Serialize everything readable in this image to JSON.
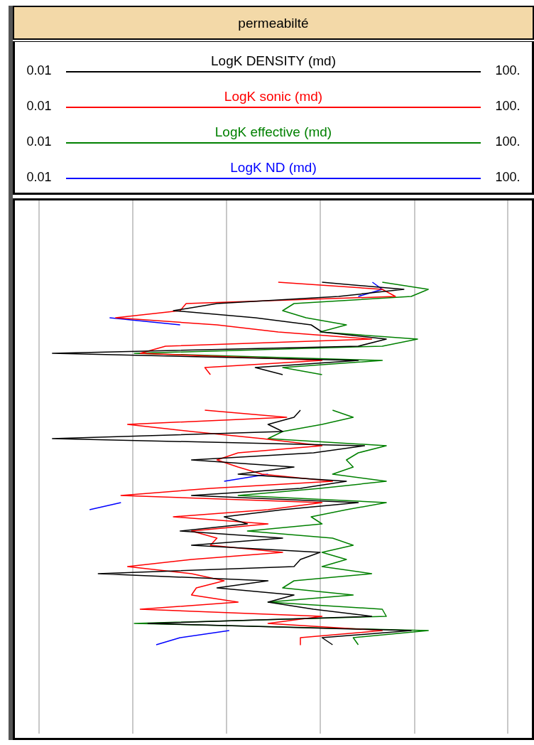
{
  "chart_data": {
    "type": "line",
    "title": "permeabilté",
    "orientation": "horizontal",
    "log": "x",
    "grid": "x",
    "legend": "top",
    "marker": "none",
    "line_style": "solid",
    "xlim": [
      0.01,
      100
    ],
    "xticks": [
      {
        "value": 0.01,
        "label": "0.01"
      },
      {
        "value": 0.063,
        "label": null
      },
      {
        "value": 0.4,
        "label": null
      },
      {
        "value": 2.5,
        "label": null
      },
      {
        "value": 16,
        "label": null
      },
      {
        "value": 100,
        "label": "100."
      }
    ],
    "categories": [
      null,
      null,
      null,
      null,
      null,
      null,
      null,
      null,
      null,
      null,
      null,
      null,
      null,
      null,
      null,
      null,
      null,
      null,
      null,
      null,
      null,
      null,
      null,
      null,
      null,
      null,
      null,
      null,
      null,
      null,
      null,
      null,
      null,
      null,
      null,
      null,
      null,
      null,
      null,
      null,
      null,
      null,
      null,
      null,
      null,
      null,
      null,
      null,
      null,
      null,
      null,
      null,
      null,
      null,
      null,
      null,
      null,
      null,
      null,
      null,
      null,
      null,
      null,
      null,
      null,
      null,
      null,
      null,
      null,
      null,
      null,
      null,
      null,
      null,
      null
    ],
    "series": [
      {
        "name": "LogK DENSITY (md)",
        "color": "#000000",
        "values": [
          null,
          null,
          null,
          null,
          null,
          null,
          null,
          null,
          null,
          null,
          null,
          2.6,
          13,
          3.6,
          0.33,
          0.14,
          0.7,
          2.1,
          2.6,
          9.2,
          5.3,
          0.013,
          5.3,
          0.7,
          1.2,
          null,
          null,
          null,
          null,
          1.7,
          1.5,
          0.9,
          1.2,
          0.013,
          6,
          2.2,
          0.2,
          1.5,
          0.5,
          4.2,
          1.7,
          0.2,
          5.3,
          1.2,
          0.38,
          0.6,
          0.16,
          1.2,
          0.2,
          2.5,
          1.7,
          1.5,
          0.032,
          0.9,
          0.33,
          1.5,
          0.9,
          2.2,
          6.9,
          0.085,
          15,
          2.6,
          3.2,
          null,
          null,
          null,
          null,
          null,
          null,
          null,
          null,
          null,
          null,
          null,
          null
        ]
      },
      {
        "name": "LogK sonic (md)",
        "color": "#ff0000",
        "values": [
          null,
          null,
          null,
          null,
          null,
          null,
          null,
          null,
          null,
          null,
          null,
          1.1,
          8.5,
          11,
          0.18,
          0.16,
          0.045,
          0.33,
          1.1,
          6.9,
          0.12,
          0.073,
          2.6,
          0.26,
          0.29,
          null,
          null,
          null,
          null,
          0.26,
          1.3,
          0.057,
          0.2,
          0.8,
          2.6,
          0.5,
          0.33,
          0.5,
          0.8,
          3.2,
          0.29,
          0.05,
          2.6,
          0.9,
          0.14,
          0.9,
          0.2,
          0.33,
          0.29,
          1.2,
          0.2,
          0.057,
          0.2,
          0.38,
          0.22,
          0.2,
          0.5,
          0.073,
          2.6,
          0.9,
          8.5,
          1.7,
          1.7,
          null,
          null,
          null,
          null,
          null,
          null,
          null,
          null,
          null,
          null,
          null,
          null
        ]
      },
      {
        "name": "LogK effective (md)",
        "color": "#008000",
        "values": [
          null,
          null,
          null,
          null,
          null,
          null,
          null,
          null,
          null,
          null,
          null,
          8.5,
          21,
          15,
          1.5,
          1.2,
          1.9,
          4.2,
          2.5,
          17,
          8.5,
          0.065,
          8.5,
          1.2,
          2.6,
          null,
          null,
          null,
          null,
          3.2,
          4.8,
          2.6,
          1.2,
          0.9,
          9.2,
          5.3,
          4.2,
          4.8,
          3.2,
          9.2,
          2.5,
          0.5,
          9.2,
          4.2,
          2.1,
          2.6,
          0.6,
          3.2,
          4.8,
          2.6,
          4.2,
          2.6,
          6.9,
          1.5,
          1.2,
          4.8,
          0.9,
          8.5,
          9.2,
          0.065,
          21,
          4.8,
          5.3,
          null,
          null,
          null,
          null,
          null,
          null,
          null,
          null,
          null,
          null,
          null,
          null
        ]
      },
      {
        "name": "LogK ND (md)",
        "color": "#0000ff",
        "values": [
          null,
          null,
          null,
          null,
          null,
          null,
          null,
          null,
          null,
          null,
          null,
          7,
          8.5,
          5.3,
          null,
          null,
          0.04,
          0.16,
          null,
          null,
          null,
          null,
          null,
          null,
          null,
          null,
          null,
          null,
          null,
          null,
          null,
          null,
          null,
          null,
          null,
          null,
          null,
          null,
          0.9,
          0.38,
          null,
          null,
          0.05,
          0.027,
          null,
          null,
          null,
          null,
          null,
          null,
          null,
          null,
          null,
          null,
          null,
          null,
          null,
          null,
          null,
          null,
          0.42,
          0.16,
          0.1,
          null,
          null,
          null,
          null,
          null,
          null,
          null,
          null,
          null,
          null,
          null,
          null
        ]
      }
    ]
  }
}
